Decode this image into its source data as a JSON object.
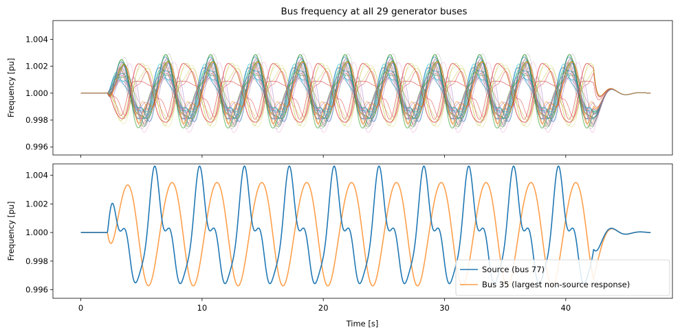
{
  "chart_data": [
    {
      "type": "line",
      "title": "Bus frequency at all 29 generator buses",
      "xlabel": "",
      "ylabel": "Frequency [pu]",
      "xlim": [
        -2.3,
        48.8
      ],
      "ylim": [
        0.9954,
        1.0054
      ],
      "xticks": [
        0,
        10,
        20,
        30,
        40
      ],
      "xtick_labels_shown": false,
      "yticks": [
        0.996,
        0.998,
        1.0,
        1.002,
        1.004
      ],
      "ytick_labels": [
        "0.996",
        "0.998",
        "1.000",
        "1.002",
        "1.004"
      ],
      "grid": false,
      "legend": "none",
      "series_count": 29,
      "series_colors": [
        "#1f77b4",
        "#ff7f0e",
        "#2ca02c",
        "#d62728",
        "#9467bd",
        "#8c564b",
        "#e377c2",
        "#7f7f7f",
        "#bcbd22",
        "#17becf"
      ],
      "fault_start": 2.2,
      "fault_end": 42.3,
      "t_end": 47
    },
    {
      "type": "line",
      "title": "",
      "xlabel": "Time [s]",
      "ylabel": "Frequency [pu]",
      "xlim": [
        -2.3,
        48.8
      ],
      "ylim": [
        0.9954,
        1.0048
      ],
      "xticks": [
        0,
        10,
        20,
        30,
        40
      ],
      "xtick_labels": [
        "0",
        "10",
        "20",
        "30",
        "40"
      ],
      "yticks": [
        0.996,
        0.998,
        1.0,
        1.002,
        1.004
      ],
      "ytick_labels": [
        "0.996",
        "0.998",
        "1.000",
        "1.002",
        "1.004"
      ],
      "grid": false,
      "legend": "bottom-right",
      "series": [
        {
          "name": "Source (bus 77)",
          "color": "#1f77b4",
          "period": 3.7,
          "main_amp": 0.0037,
          "harmonic_amp": 0.0012,
          "max": 1.0044,
          "min": 0.9958
        },
        {
          "name": "Bus 35 (largest non-source response)",
          "color": "#ff7f0e",
          "period": 3.7,
          "amp": 0.0036,
          "max": 1.0044,
          "min": 0.9972
        }
      ],
      "fault_start": 2.2,
      "fault_end": 42.3,
      "t_end": 47
    }
  ]
}
